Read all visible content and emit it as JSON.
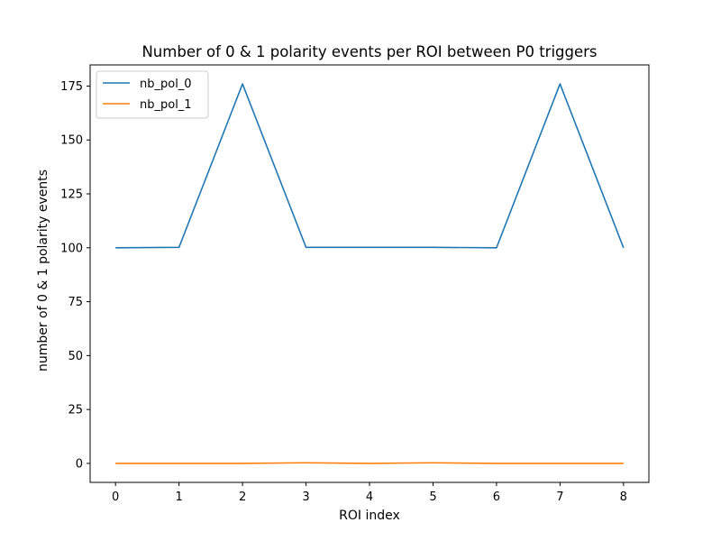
{
  "chart_data": {
    "type": "line",
    "title": "Number of 0 & 1 polarity events per ROI between P0 triggers",
    "xlabel": "ROI index",
    "ylabel": "number of 0 & 1 polarity events",
    "x": [
      0,
      1,
      2,
      3,
      4,
      5,
      6,
      7,
      8
    ],
    "xlim": [
      -0.4,
      8.4
    ],
    "ylim": [
      -8.8,
      184.8
    ],
    "xticks": [
      0,
      1,
      2,
      3,
      4,
      5,
      6,
      7,
      8
    ],
    "yticks": [
      0,
      25,
      50,
      75,
      100,
      125,
      150,
      175
    ],
    "grid": false,
    "legend_position": "top-left",
    "series": [
      {
        "name": "nb_pol_0",
        "color": "#1f77b4",
        "values": [
          100,
          100.2,
          176,
          100.2,
          100.2,
          100.2,
          100,
          176,
          100
        ]
      },
      {
        "name": "nb_pol_1",
        "color": "#ff7f0e",
        "values": [
          0,
          0,
          0,
          0.3,
          0,
          0.3,
          0,
          0,
          0
        ]
      }
    ]
  }
}
